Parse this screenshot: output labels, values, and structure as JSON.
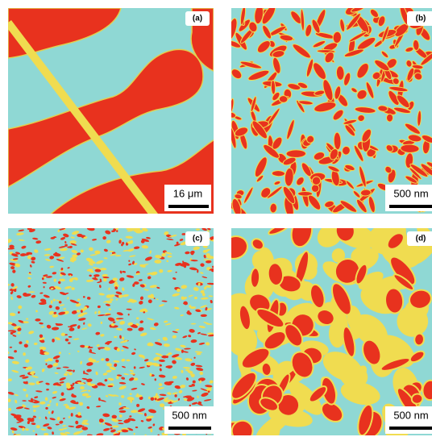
{
  "panels": [
    {
      "label": "(a)",
      "scale_bar": "16 μm"
    },
    {
      "label": "(b)",
      "scale_bar": "500 nm"
    },
    {
      "label": "(c)",
      "scale_bar": "500 nm"
    },
    {
      "label": "(d)",
      "scale_bar": "500 nm"
    }
  ]
}
